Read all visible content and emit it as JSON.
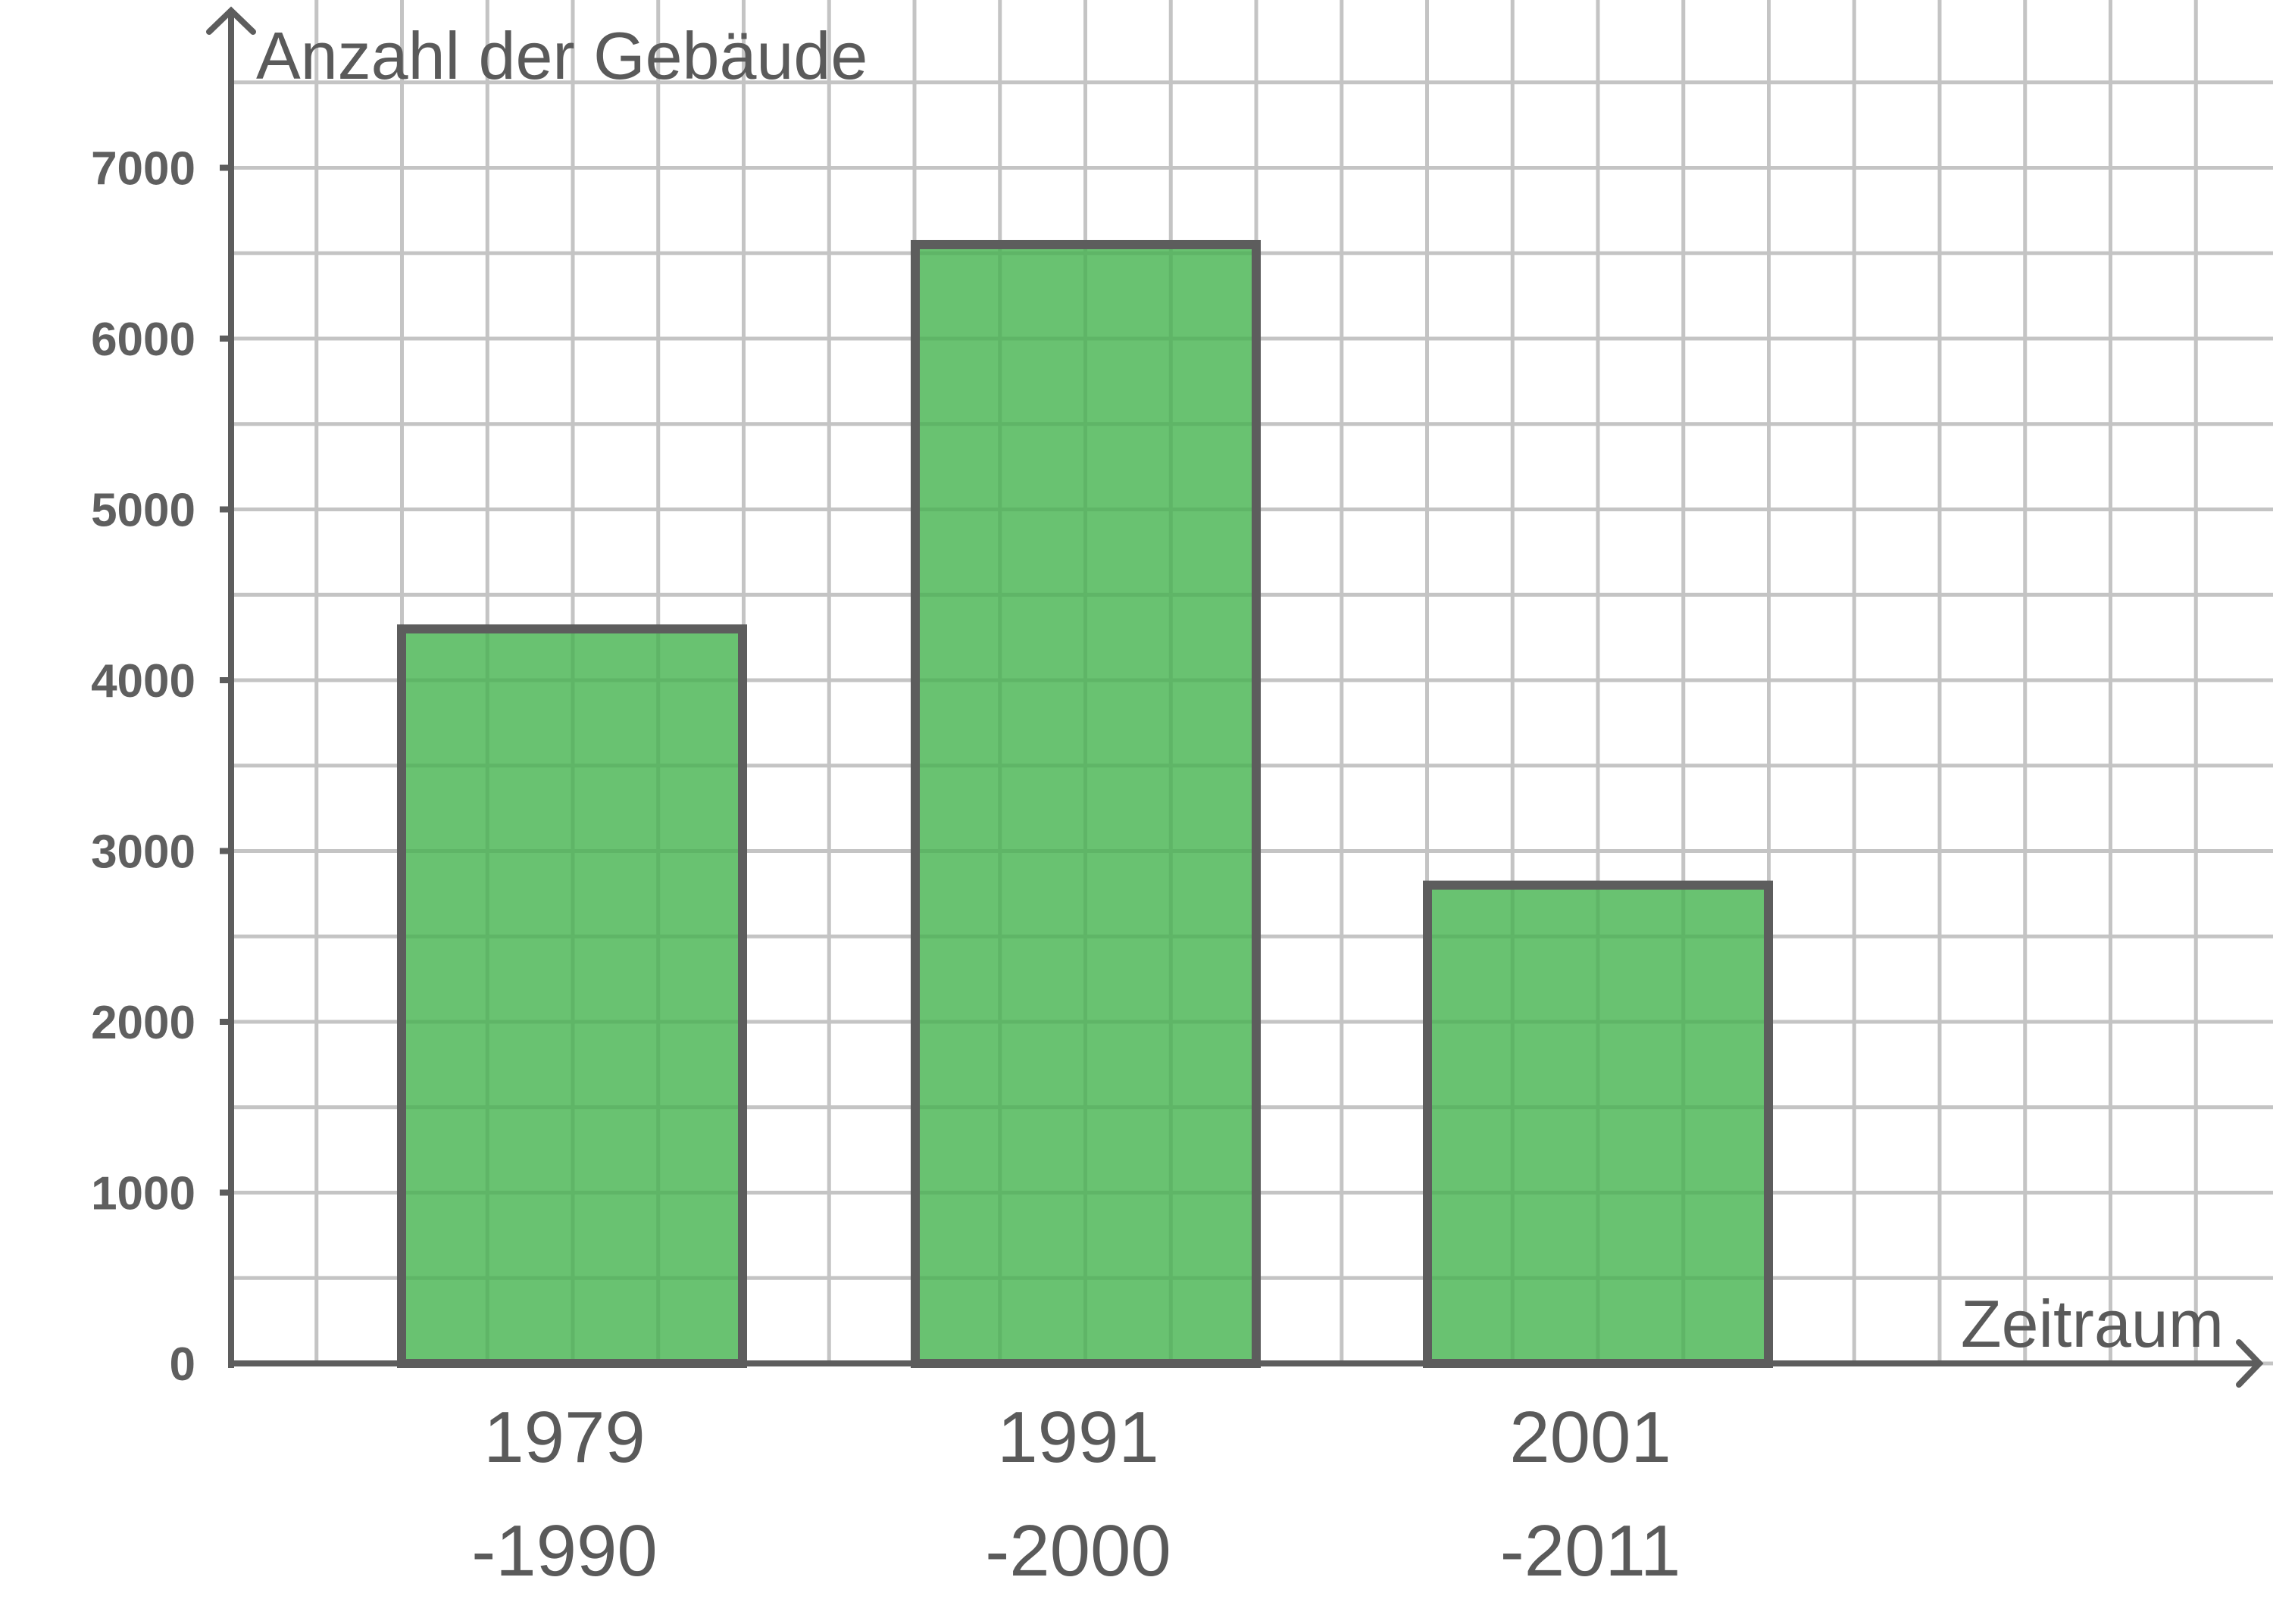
{
  "chart_data": {
    "type": "bar",
    "categories": [
      [
        "1979",
        "-1990"
      ],
      [
        "1991",
        "-2000"
      ],
      [
        "2001",
        "-2011"
      ]
    ],
    "values": [
      4300,
      6550,
      2800
    ],
    "ylabel": "Anzahl der Gebäude",
    "xlabel": "Zeitraum",
    "ylim": [
      0,
      8000
    ],
    "yticks": [
      0,
      1000,
      2000,
      3000,
      4000,
      5000,
      6000,
      7000
    ],
    "grid": true,
    "legend": "none",
    "colors": {
      "bar_fill": "#69c271",
      "bar_stroke": "#5d5d5d",
      "grid": "#c4c4c4",
      "axis": "#5d5d5d",
      "text": "#5a5a5a"
    }
  }
}
